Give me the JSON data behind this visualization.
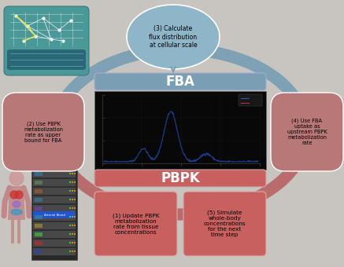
{
  "figsize": [
    4.37,
    3.4
  ],
  "dpi": 100,
  "bg_color": "#c8c5c0",
  "fba_bar_color": "#7a9fb5",
  "pbpk_bar_color": "#c86060",
  "fba_label": "FBA",
  "pbpk_label": "PBPK",
  "step3_label": "(3) Calculate\nflux distribution\nat cellular scale",
  "step2_label": "(2) Use PBPK\nmetabolization\nrate as upper\nbound for FBA",
  "step4_label": "(4) Use FBA\nuptake as\nupstream PBPK\nmetabolization\nrate",
  "step1_label": "(1) Update PBPK\nmetabolization\nrate from tissue\nconcentrations",
  "step5_label": "(5) Simulate\nwhole-body\nconcentrations\nfor the next\ntime step",
  "ellipse_color": "#8fb5c8",
  "step24_color": "#b87878",
  "step15_color": "#c86060",
  "arrow_fba_color": "#7a9fb5",
  "arrow_pbpk_color": "#b85858",
  "plot_bg": "#080808",
  "plot_line_color": "#1a3a6a",
  "net_bg": "#4a9898",
  "net_inner": "#2a6878"
}
